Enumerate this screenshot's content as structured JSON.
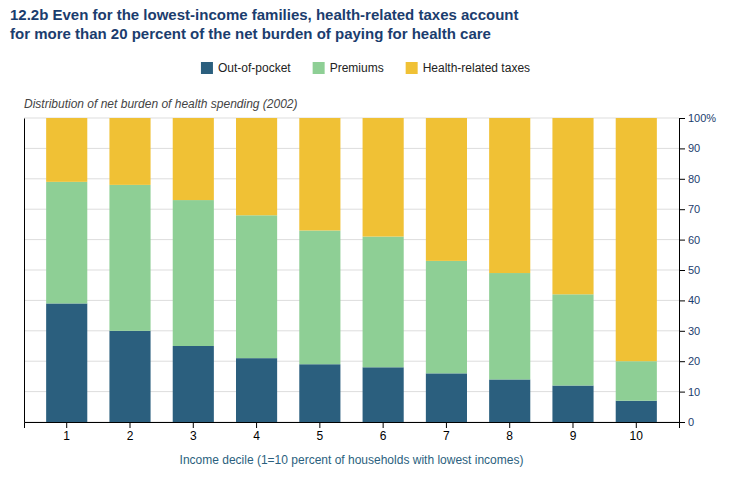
{
  "chart_data": {
    "type": "bar",
    "stacked": true,
    "title": "12.2b Even for the lowest-income families, health-related taxes account\nfor more than 20 percent of the net burden of paying for health care",
    "subtitle": "Distribution of net burden of health spending (2002)",
    "x_label": "Income decile (1=10 percent of households with lowest incomes)",
    "categories": [
      "1",
      "2",
      "3",
      "4",
      "5",
      "6",
      "7",
      "8",
      "9",
      "10"
    ],
    "series": [
      {
        "name": "Out-of-pocket",
        "color": "#2b5f7e",
        "values": [
          39,
          30,
          25,
          21,
          19,
          18,
          16,
          14,
          12,
          7
        ]
      },
      {
        "name": "Premiums",
        "color": "#8ecf95",
        "values": [
          40,
          48,
          48,
          47,
          44,
          43,
          37,
          35,
          30,
          13
        ]
      },
      {
        "name": "Health-related taxes",
        "color": "#f0c135",
        "values": [
          21,
          22,
          27,
          32,
          37,
          39,
          47,
          51,
          58,
          80
        ]
      }
    ],
    "ylim": [
      0,
      100
    ],
    "yticks": [
      0,
      10,
      20,
      30,
      40,
      50,
      60,
      70,
      80,
      90,
      {
        "value": 100,
        "label": "100%"
      }
    ],
    "grid": true,
    "legend": "top"
  }
}
